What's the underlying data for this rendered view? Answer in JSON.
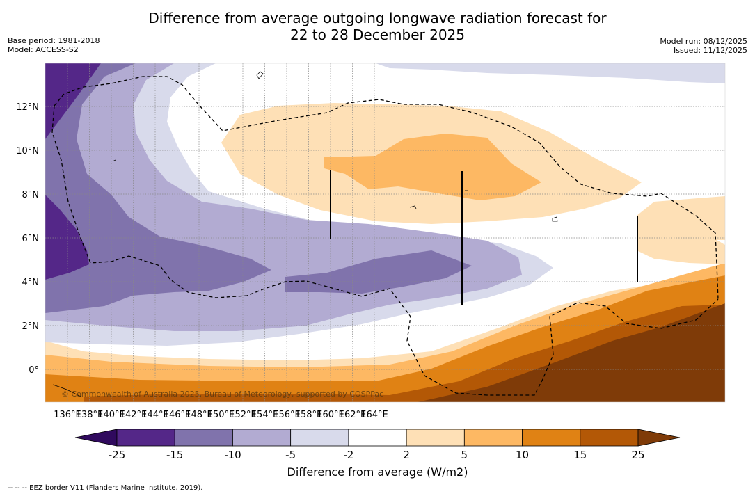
{
  "header": {
    "title_line1": "Difference from average outgoing longwave radiation forecast for",
    "title_line2": "22 to 28 December 2025",
    "base_period": "Base period: 1981-2018",
    "model": "Model: ACCESS-S2",
    "model_run": "Model run: 08/12/2025",
    "issued": "Issued: 11/12/2025"
  },
  "map": {
    "lat_labels": [
      "12°N",
      "10°N",
      "8°N",
      "6°N",
      "4°N",
      "2°N",
      "0°"
    ],
    "lon_labels": [
      "136°E",
      "138°E",
      "140°E",
      "142°E",
      "144°E",
      "146°E",
      "148°E",
      "150°E",
      "152°E",
      "154°E",
      "156°E",
      "158°E",
      "160°E",
      "162°E",
      "164°E"
    ],
    "copyright": "© Commonwealth of Australia 2025, Bureau of Meteorology, supported by COSPPac"
  },
  "colorbar": {
    "ticks": [
      "-25",
      "-15",
      "-10",
      "-5",
      "-2",
      "2",
      "5",
      "10",
      "15",
      "25"
    ],
    "colors": [
      "#300a5e",
      "#542788",
      "#8073ac",
      "#b2abd2",
      "#d8daeb",
      "#ffffff",
      "#fee0b6",
      "#fdb863",
      "#e08214",
      "#b35806",
      "#7f3b08"
    ],
    "label": "Difference from average (W/m2)"
  },
  "footnote": "-- -- -- EEZ border V11 (Flanders Marine Institute, 2019)."
}
